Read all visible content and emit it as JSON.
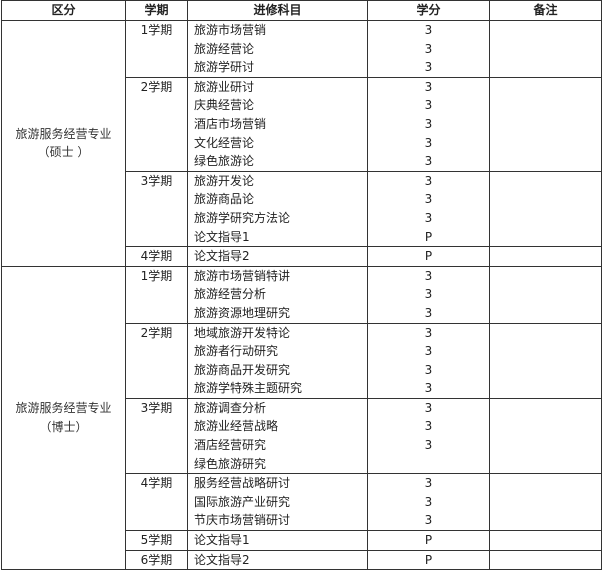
{
  "headers": [
    "区分",
    "学期",
    "进修科目",
    "学分",
    "备注"
  ],
  "programs": [
    {
      "name": "旅游服务经营专业（硕士 ）",
      "semesters": [
        {
          "label": "1学期",
          "courses": [
            {
              "name": "旅游市场营销",
              "credit": "3"
            },
            {
              "name": "旅游经营论",
              "credit": "3"
            },
            {
              "name": "旅游学研讨",
              "credit": "3"
            }
          ]
        },
        {
          "label": "2学期",
          "courses": [
            {
              "name": "旅游业研讨",
              "credit": "3"
            },
            {
              "name": "庆典经营论",
              "credit": "3"
            },
            {
              "name": "酒店市场营销",
              "credit": "3"
            },
            {
              "name": "文化经营论",
              "credit": "3"
            },
            {
              "name": "绿色旅游论",
              "credit": "3"
            }
          ]
        },
        {
          "label": "3学期",
          "courses": [
            {
              "name": "旅游开发论",
              "credit": "3"
            },
            {
              "name": "旅游商品论",
              "credit": "3"
            },
            {
              "name": "旅游学研究方法论",
              "credit": "3"
            },
            {
              "name": "论文指导1",
              "credit": "P"
            }
          ]
        },
        {
          "label": "4学期",
          "courses": [
            {
              "name": "论文指导2",
              "credit": "P"
            }
          ]
        }
      ]
    },
    {
      "name": "旅游服务经营专业（博士）",
      "semesters": [
        {
          "label": "1学期",
          "courses": [
            {
              "name": "旅游市场营销特讲",
              "credit": "3"
            },
            {
              "name": "旅游经营分析",
              "credit": "3"
            },
            {
              "name": "旅游资源地理研究",
              "credit": "3"
            }
          ]
        },
        {
          "label": "2学期",
          "courses": [
            {
              "name": "地域旅游开发特论",
              "credit": "3"
            },
            {
              "name": "旅游者行动研究",
              "credit": "3"
            },
            {
              "name": "旅游商品开发研究",
              "credit": "3"
            },
            {
              "name": "旅游学特殊主题研究",
              "credit": "3"
            }
          ]
        },
        {
          "label": "3学期",
          "courses": [
            {
              "name": "旅游调查分析",
              "credit": "3"
            },
            {
              "name": "旅游业经营战略",
              "credit": "3"
            },
            {
              "name": "酒店经营研究",
              "credit": "3"
            },
            {
              "name": "绿色旅游研究",
              "credit": ""
            }
          ]
        },
        {
          "label": "4学期",
          "courses": [
            {
              "name": "服务经营战略研讨",
              "credit": "3"
            },
            {
              "name": "国际旅游产业研究",
              "credit": "3"
            },
            {
              "name": "节庆市场营销研讨",
              "credit": "3"
            }
          ]
        },
        {
          "label": "5学期",
          "courses": [
            {
              "name": "论文指导1",
              "credit": "P"
            }
          ]
        },
        {
          "label": "6学期",
          "courses": [
            {
              "name": "论文指导2",
              "credit": "P"
            }
          ]
        }
      ]
    }
  ]
}
